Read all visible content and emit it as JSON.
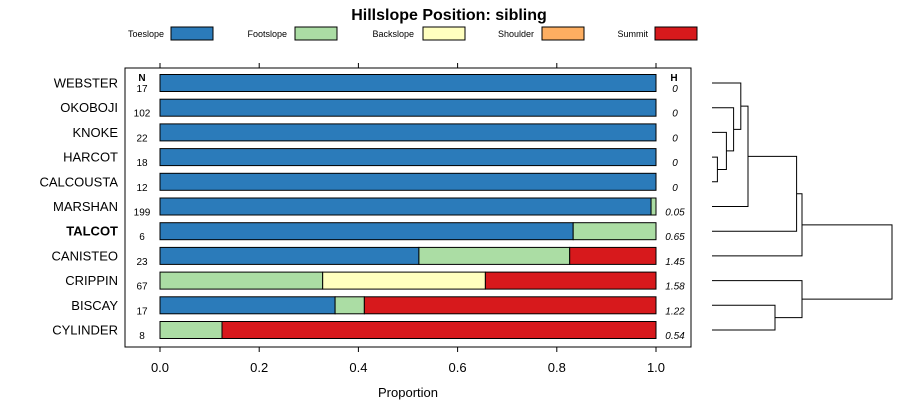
{
  "chart_data": {
    "type": "bar",
    "subtype": "stacked-horizontal-proportion",
    "title": "Hillslope Position: sibling",
    "xlabel": "Proportion",
    "xlim": [
      0,
      1
    ],
    "x_ticks": [
      "0.0",
      "0.2",
      "0.4",
      "0.6",
      "0.8",
      "1.0"
    ],
    "x_tick_values": [
      0,
      0.2,
      0.4,
      0.6,
      0.8,
      1.0
    ],
    "n_header": "N",
    "h_header": "H",
    "legend": [
      {
        "name": "Toeslope",
        "color": "#2b7bba"
      },
      {
        "name": "Footslope",
        "color": "#abdda4"
      },
      {
        "name": "Backslope",
        "color": "#ffffbf"
      },
      {
        "name": "Shoulder",
        "color": "#fdae61"
      },
      {
        "name": "Summit",
        "color": "#d7191c"
      }
    ],
    "series": [
      {
        "name": "WEBSTER",
        "n": "17",
        "h": "0",
        "bold": false,
        "values": [
          1.0,
          0,
          0,
          0,
          0
        ]
      },
      {
        "name": "OKOBOJI",
        "n": "102",
        "h": "0",
        "bold": false,
        "values": [
          1.0,
          0,
          0,
          0,
          0
        ]
      },
      {
        "name": "KNOKE",
        "n": "22",
        "h": "0",
        "bold": false,
        "values": [
          1.0,
          0,
          0,
          0,
          0
        ]
      },
      {
        "name": "HARCOT",
        "n": "18",
        "h": "0",
        "bold": false,
        "values": [
          1.0,
          0,
          0,
          0,
          0
        ]
      },
      {
        "name": "CALCOUSTA",
        "n": "12",
        "h": "0",
        "bold": false,
        "values": [
          1.0,
          0,
          0,
          0,
          0
        ]
      },
      {
        "name": "MARSHAN",
        "n": "199",
        "h": "0.05",
        "bold": false,
        "values": [
          0.99,
          0.01,
          0,
          0,
          0
        ]
      },
      {
        "name": "TALCOT",
        "n": "6",
        "h": "0.65",
        "bold": true,
        "values": [
          0.833,
          0.167,
          0,
          0,
          0
        ]
      },
      {
        "name": "CANISTEO",
        "n": "23",
        "h": "1.45",
        "bold": false,
        "values": [
          0.522,
          0.304,
          0,
          0,
          0.174
        ]
      },
      {
        "name": "CRIPPIN",
        "n": "67",
        "h": "1.58",
        "bold": false,
        "values": [
          0,
          0.328,
          0.328,
          0,
          0.344
        ]
      },
      {
        "name": "BISCAY",
        "n": "17",
        "h": "1.22",
        "bold": false,
        "values": [
          0.353,
          0.059,
          0,
          0,
          0.588
        ]
      },
      {
        "name": "CYLINDER",
        "n": "8",
        "h": "0.54",
        "bold": false,
        "values": [
          0,
          0.125,
          0,
          0,
          0.875
        ]
      }
    ],
    "dendrogram": {
      "merges": [
        {
          "a": "CALCOUSTA",
          "b": "HARCOT",
          "height": 0.03
        },
        {
          "a": "m1",
          "b": "KNOKE",
          "height": 0.08
        },
        {
          "a": "m2",
          "b": "OKOBOJI",
          "height": 0.12
        },
        {
          "a": "m3",
          "b": "WEBSTER",
          "height": 0.16
        },
        {
          "a": "m4",
          "b": "MARSHAN",
          "height": 0.2
        },
        {
          "a": "m5",
          "b": "TALCOT",
          "height": 0.47
        },
        {
          "a": "CYLINDER",
          "b": "BISCAY",
          "height": 0.35
        },
        {
          "a": "m7",
          "b": "CRIPPIN",
          "height": 0.5
        },
        {
          "a": "m6",
          "b": "CANISTEO",
          "height": 0.5
        },
        {
          "a": "m8",
          "b": "m9",
          "height": 1.0
        }
      ]
    }
  }
}
